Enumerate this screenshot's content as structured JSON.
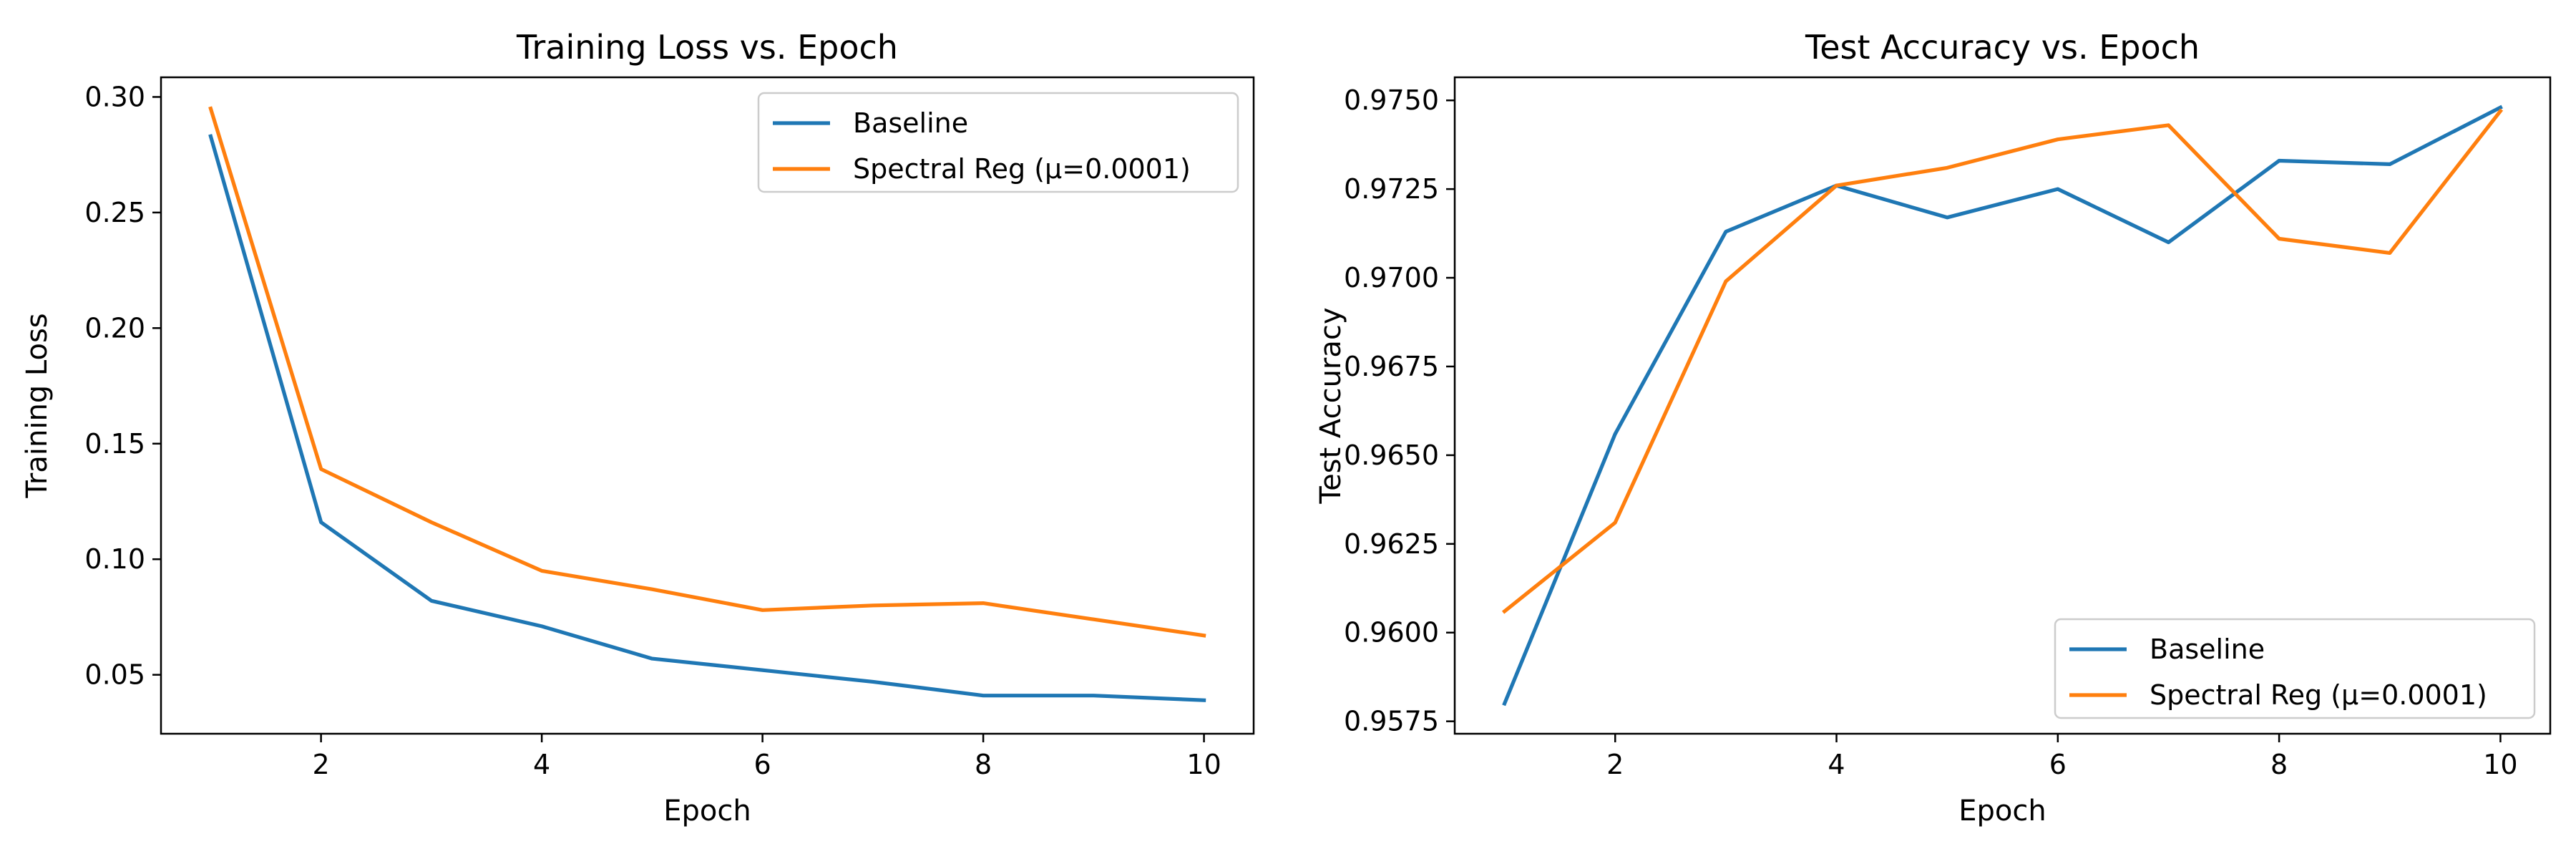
{
  "chart_data": [
    {
      "type": "line",
      "title": "Training Loss vs. Epoch",
      "xlabel": "Epoch",
      "ylabel": "Training Loss",
      "x": [
        1,
        2,
        3,
        4,
        5,
        6,
        7,
        8,
        9,
        10
      ],
      "xlim": [
        0.55,
        10.45
      ],
      "ylim": [
        0.0245,
        0.3085
      ],
      "xticks": [
        2,
        4,
        6,
        8,
        10
      ],
      "yticks": [
        0.05,
        0.1,
        0.15,
        0.2,
        0.25,
        0.3
      ],
      "ytick_labels": [
        "0.05",
        "0.10",
        "0.15",
        "0.20",
        "0.25",
        "0.30"
      ],
      "grid": false,
      "legend_position": "upper right",
      "series": [
        {
          "name": "Baseline",
          "color": "#1f77b4",
          "values": [
            0.283,
            0.116,
            0.082,
            0.071,
            0.057,
            0.052,
            0.047,
            0.041,
            0.041,
            0.039
          ]
        },
        {
          "name": "Spectral Reg (μ=0.0001)",
          "color": "#ff7f0e",
          "values": [
            0.295,
            0.139,
            0.116,
            0.095,
            0.087,
            0.078,
            0.08,
            0.081,
            0.074,
            0.067
          ]
        }
      ]
    },
    {
      "type": "line",
      "title": "Test Accuracy vs. Epoch",
      "xlabel": "Epoch",
      "ylabel": "Test Accuracy",
      "x": [
        1,
        2,
        3,
        4,
        5,
        6,
        7,
        8,
        9,
        10
      ],
      "xlim": [
        0.55,
        10.45
      ],
      "ylim": [
        0.95715,
        0.97565
      ],
      "xticks": [
        2,
        4,
        6,
        8,
        10
      ],
      "yticks": [
        0.9575,
        0.96,
        0.9625,
        0.965,
        0.9675,
        0.97,
        0.9725,
        0.975
      ],
      "ytick_labels": [
        "0.9575",
        "0.9600",
        "0.9625",
        "0.9650",
        "0.9675",
        "0.9700",
        "0.9725",
        "0.9750"
      ],
      "grid": false,
      "legend_position": "lower right",
      "series": [
        {
          "name": "Baseline",
          "color": "#1f77b4",
          "values": [
            0.958,
            0.9656,
            0.9713,
            0.9726,
            0.9717,
            0.9725,
            0.971,
            0.9733,
            0.9732,
            0.9748
          ]
        },
        {
          "name": "Spectral Reg (μ=0.0001)",
          "color": "#ff7f0e",
          "values": [
            0.9606,
            0.9631,
            0.9699,
            0.9726,
            0.9731,
            0.9739,
            0.9743,
            0.9711,
            0.9707,
            0.9747
          ]
        }
      ]
    }
  ]
}
